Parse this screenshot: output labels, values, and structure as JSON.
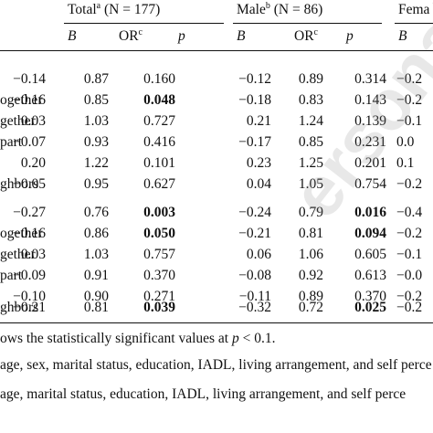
{
  "headers": {
    "total": {
      "prefix": "Total",
      "sup": "a",
      "n": "(N = 177)"
    },
    "male": {
      "prefix": "Male",
      "sup": "b",
      "n": "(N = 86)"
    },
    "female": {
      "prefix": "Fema"
    }
  },
  "subheaders": {
    "b": "B",
    "or": "OR",
    "or_sup": "c",
    "p": "p"
  },
  "block1": [
    {
      "label": "",
      "t_b": "−0.14",
      "t_or": "0.87",
      "t_p": "0.160",
      "t_bold": false,
      "m_b": "−0.12",
      "m_or": "0.89",
      "m_p": "0.314",
      "m_bold": false,
      "f_b": "−0.2"
    },
    {
      "label": "ogether",
      "t_b": "−0.16",
      "t_or": "0.85",
      "t_p": "0.048",
      "t_bold": true,
      "m_b": "−0.18",
      "m_or": "0.83",
      "m_p": "0.143",
      "m_bold": false,
      "f_b": "−0.2"
    },
    {
      "label": "gether",
      "t_b": "0.03",
      "t_or": "1.03",
      "t_p": "0.727",
      "t_bold": false,
      "m_b": "0.21",
      "m_or": "1.24",
      "m_p": "0.139",
      "m_bold": false,
      "f_b": "−0.1"
    },
    {
      "label": "part",
      "t_b": "−0.07",
      "t_or": "0.93",
      "t_p": "0.416",
      "t_bold": false,
      "m_b": "−0.17",
      "m_or": "0.85",
      "m_p": "0.231",
      "m_bold": false,
      "f_b": "0.0"
    },
    {
      "label": "",
      "t_b": "0.20",
      "t_or": "1.22",
      "t_p": "0.101",
      "t_bold": false,
      "m_b": "0.23",
      "m_or": "1.25",
      "m_p": "0.201",
      "m_bold": false,
      "f_b": "0.1"
    },
    {
      "label": "ghbors",
      "t_b": "−0.05",
      "t_or": "0.95",
      "t_p": "0.627",
      "t_bold": false,
      "m_b": "0.04",
      "m_or": "1.05",
      "m_p": "0.754",
      "m_bold": false,
      "f_b": "−0.2"
    }
  ],
  "block2": [
    {
      "label": "",
      "t_b": "−0.27",
      "t_or": "0.76",
      "t_p": "0.003",
      "t_bold": true,
      "m_b": "−0.24",
      "m_or": "0.79",
      "m_p": "0.016",
      "m_bold": true,
      "f_b": "−0.4"
    },
    {
      "label": "ogether",
      "t_b": "−0.16",
      "t_or": "0.86",
      "t_p": "0.050",
      "t_bold": true,
      "m_b": "−0.21",
      "m_or": "0.81",
      "m_p": "0.094",
      "m_bold": true,
      "f_b": "−0.2"
    },
    {
      "label": "gether",
      "t_b": "0.03",
      "t_or": "1.03",
      "t_p": "0.757",
      "t_bold": false,
      "m_b": "0.06",
      "m_or": "1.06",
      "m_p": "0.605",
      "m_bold": false,
      "f_b": "−0.1"
    },
    {
      "label": "part",
      "t_b": "−0.09",
      "t_or": "0.91",
      "t_p": "0.370",
      "t_bold": false,
      "m_b": "−0.08",
      "m_or": "0.92",
      "m_p": "0.613",
      "m_bold": false,
      "f_b": "−0.0"
    },
    {
      "label": "",
      "t_b": "−0.10",
      "t_or": "0.90",
      "t_p": "0.271",
      "t_bold": false,
      "m_b": "−0.11",
      "m_or": "0.89",
      "m_p": "0.370",
      "m_bold": false,
      "f_b": "−0.2"
    },
    {
      "label": "ghbors",
      "t_b": "−0.21",
      "t_or": "0.81",
      "t_p": "0.039",
      "t_bold": true,
      "m_b": "−0.32",
      "m_or": "0.72",
      "m_p": "0.025",
      "m_bold": true,
      "f_b": "−0.2"
    }
  ],
  "notes": {
    "n1_pre": "ows the statistically significant values at ",
    "n1_p": "p",
    "n1_post": " < 0.1.",
    "n2": "age, sex, marital status, education, IADL, living arrangement, and self perce",
    "n3": " age, marital status, education, IADL, living arrangement, and self perce"
  },
  "watermark": "ersonal C"
}
